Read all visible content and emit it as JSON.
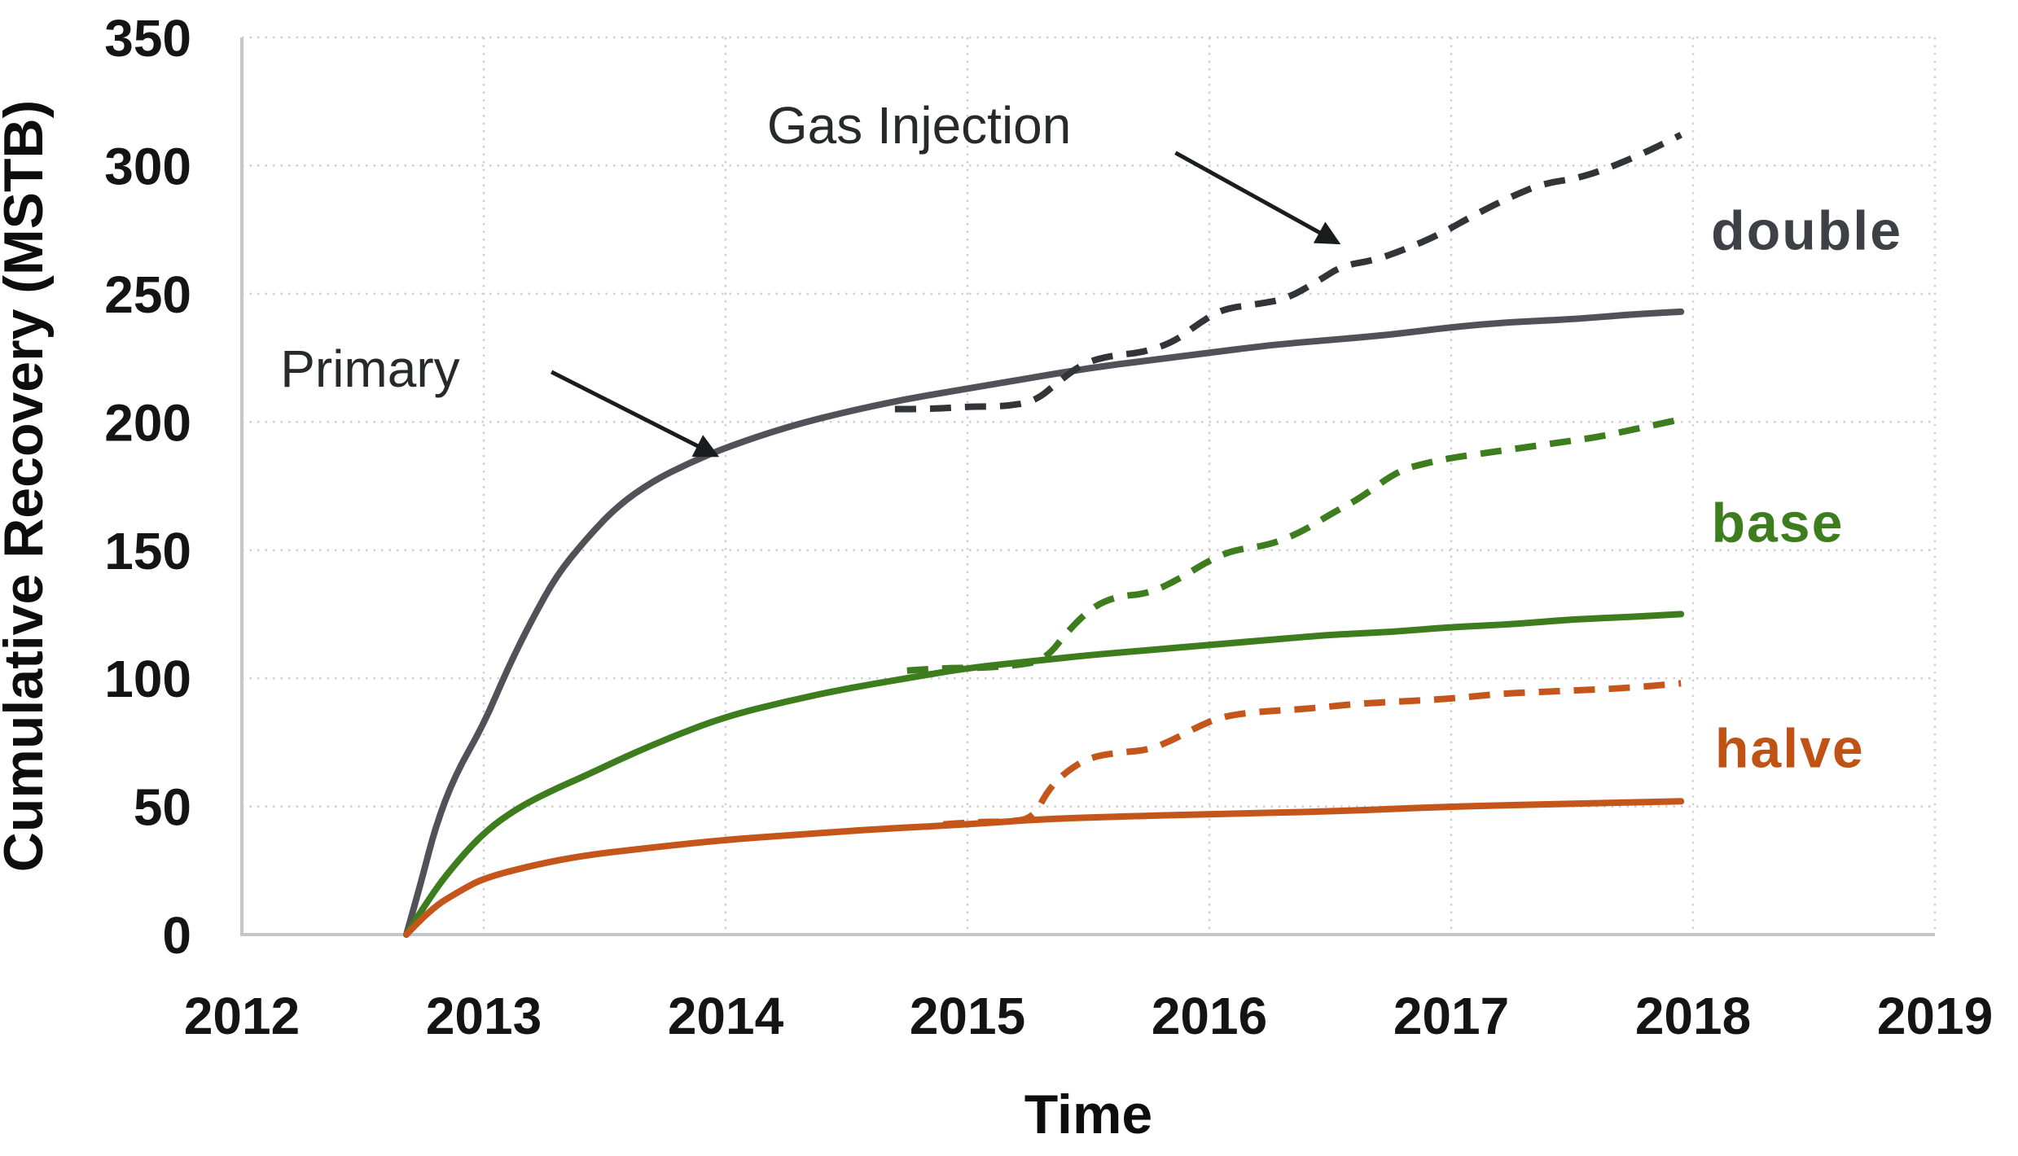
{
  "page": {
    "background": "#ffffff"
  },
  "chart_data": {
    "type": "line",
    "title": "",
    "xlabel": "Time",
    "ylabel": "Cumulative Recovery (MSTB)",
    "xlim": [
      2012,
      2019
    ],
    "ylim": [
      0,
      350
    ],
    "x_ticks": [
      "2012",
      "2013",
      "2014",
      "2015",
      "2016",
      "2017",
      "2018",
      "2019"
    ],
    "y_ticks": [
      "0",
      "50",
      "100",
      "150",
      "200",
      "250",
      "300",
      "350"
    ],
    "grid": "dotted",
    "colors": {
      "double": "#3d4045",
      "double_line_solid": "#515157",
      "double_line_dashed": "#333438",
      "base": "#3d7d1e",
      "halve": "#c4551b",
      "halve_label": "#c05214",
      "annotation": "#28292b",
      "arrow": "#1b1c1e",
      "gridline": "#ccd0d4",
      "axis": "#c3c7cb"
    },
    "series": [
      {
        "name": "primary-double",
        "scenario": "double",
        "mode": "Primary",
        "style": "solid",
        "color": "#515157",
        "points": [
          [
            2012.68,
            0
          ],
          [
            2012.74,
            20
          ],
          [
            2012.8,
            42
          ],
          [
            2012.88,
            62
          ],
          [
            2013.0,
            82
          ],
          [
            2013.1,
            104
          ],
          [
            2013.2,
            123
          ],
          [
            2013.3,
            140
          ],
          [
            2013.42,
            154
          ],
          [
            2013.55,
            167
          ],
          [
            2013.7,
            177
          ],
          [
            2013.85,
            184
          ],
          [
            2014.0,
            190
          ],
          [
            2014.25,
            198
          ],
          [
            2014.5,
            204
          ],
          [
            2014.75,
            209
          ],
          [
            2015.0,
            213
          ],
          [
            2015.25,
            217
          ],
          [
            2015.5,
            221
          ],
          [
            2015.75,
            224
          ],
          [
            2016.0,
            227
          ],
          [
            2016.25,
            230
          ],
          [
            2016.5,
            232
          ],
          [
            2016.75,
            234
          ],
          [
            2017.0,
            237
          ],
          [
            2017.25,
            239
          ],
          [
            2017.5,
            240
          ],
          [
            2017.75,
            242
          ],
          [
            2017.95,
            243
          ]
        ]
      },
      {
        "name": "gas-injection-double",
        "scenario": "double",
        "mode": "Gas Injection",
        "style": "dashed",
        "color": "#333438",
        "points": [
          [
            2014.7,
            205
          ],
          [
            2014.85,
            205
          ],
          [
            2015.0,
            206
          ],
          [
            2015.15,
            206
          ],
          [
            2015.28,
            208
          ],
          [
            2015.38,
            216
          ],
          [
            2015.48,
            223
          ],
          [
            2015.6,
            226
          ],
          [
            2015.72,
            227
          ],
          [
            2015.85,
            231
          ],
          [
            2015.95,
            238
          ],
          [
            2016.05,
            244
          ],
          [
            2016.2,
            246
          ],
          [
            2016.32,
            248
          ],
          [
            2016.45,
            255
          ],
          [
            2016.55,
            261
          ],
          [
            2016.68,
            263
          ],
          [
            2016.8,
            267
          ],
          [
            2016.95,
            273
          ],
          [
            2017.1,
            281
          ],
          [
            2017.25,
            288
          ],
          [
            2017.38,
            293
          ],
          [
            2017.52,
            295
          ],
          [
            2017.65,
            299
          ],
          [
            2017.8,
            305
          ],
          [
            2017.95,
            312
          ]
        ]
      },
      {
        "name": "primary-base",
        "scenario": "base",
        "mode": "Primary",
        "style": "solid",
        "color": "#3d7d1e",
        "points": [
          [
            2012.68,
            0
          ],
          [
            2012.76,
            12
          ],
          [
            2012.85,
            24
          ],
          [
            2013.0,
            40
          ],
          [
            2013.15,
            50
          ],
          [
            2013.3,
            57
          ],
          [
            2013.42,
            62
          ],
          [
            2013.6,
            70
          ],
          [
            2013.8,
            78
          ],
          [
            2014.0,
            85
          ],
          [
            2014.25,
            91
          ],
          [
            2014.5,
            96
          ],
          [
            2014.75,
            100
          ],
          [
            2015.0,
            104
          ],
          [
            2015.3,
            107
          ],
          [
            2015.5,
            109
          ],
          [
            2015.75,
            111
          ],
          [
            2016.0,
            113
          ],
          [
            2016.25,
            115
          ],
          [
            2016.5,
            117
          ],
          [
            2016.75,
            118
          ],
          [
            2017.0,
            120
          ],
          [
            2017.25,
            121
          ],
          [
            2017.5,
            123
          ],
          [
            2017.75,
            124
          ],
          [
            2017.95,
            125
          ]
        ]
      },
      {
        "name": "gas-injection-base",
        "scenario": "base",
        "mode": "Gas Injection",
        "style": "dashed",
        "color": "#3d7d1e",
        "points": [
          [
            2014.75,
            103
          ],
          [
            2014.9,
            104
          ],
          [
            2015.05,
            104
          ],
          [
            2015.2,
            105
          ],
          [
            2015.32,
            107
          ],
          [
            2015.42,
            119
          ],
          [
            2015.52,
            128
          ],
          [
            2015.62,
            132
          ],
          [
            2015.75,
            133
          ],
          [
            2015.88,
            139
          ],
          [
            2016.0,
            146
          ],
          [
            2016.1,
            150
          ],
          [
            2016.25,
            152
          ],
          [
            2016.38,
            157
          ],
          [
            2016.5,
            164
          ],
          [
            2016.62,
            170
          ],
          [
            2016.78,
            181
          ],
          [
            2016.9,
            184
          ],
          [
            2017.0,
            186
          ],
          [
            2017.15,
            188
          ],
          [
            2017.3,
            190
          ],
          [
            2017.45,
            192
          ],
          [
            2017.6,
            194
          ],
          [
            2017.75,
            197
          ],
          [
            2017.95,
            201
          ]
        ]
      },
      {
        "name": "primary-halve",
        "scenario": "halve",
        "mode": "Primary",
        "style": "solid",
        "color": "#c4551b",
        "points": [
          [
            2012.68,
            0
          ],
          [
            2012.78,
            10
          ],
          [
            2012.9,
            17
          ],
          [
            2013.0,
            22
          ],
          [
            2013.2,
            27
          ],
          [
            2013.42,
            31
          ],
          [
            2013.7,
            34
          ],
          [
            2014.0,
            37
          ],
          [
            2014.3,
            39
          ],
          [
            2014.6,
            41
          ],
          [
            2015.0,
            43
          ],
          [
            2015.3,
            45
          ],
          [
            2015.6,
            46
          ],
          [
            2016.0,
            47
          ],
          [
            2016.5,
            48
          ],
          [
            2017.0,
            50
          ],
          [
            2017.5,
            51
          ],
          [
            2017.95,
            52
          ]
        ]
      },
      {
        "name": "gas-injection-halve",
        "scenario": "halve",
        "mode": "Gas Injection",
        "style": "dashed",
        "color": "#c4551b",
        "points": [
          [
            2014.9,
            43
          ],
          [
            2015.05,
            44
          ],
          [
            2015.15,
            44
          ],
          [
            2015.27,
            45
          ],
          [
            2015.33,
            56
          ],
          [
            2015.4,
            63
          ],
          [
            2015.5,
            69
          ],
          [
            2015.62,
            71
          ],
          [
            2015.75,
            72
          ],
          [
            2015.85,
            76
          ],
          [
            2015.95,
            81
          ],
          [
            2016.05,
            85
          ],
          [
            2016.2,
            87
          ],
          [
            2016.4,
            88
          ],
          [
            2016.6,
            90
          ],
          [
            2016.8,
            91
          ],
          [
            2017.0,
            92
          ],
          [
            2017.2,
            94
          ],
          [
            2017.45,
            95
          ],
          [
            2017.7,
            96
          ],
          [
            2017.95,
            98
          ]
        ]
      }
    ],
    "series_labels": [
      {
        "text": "double",
        "color": "#3d4045",
        "x": 2018.47,
        "y": 275
      },
      {
        "text": "base",
        "color": "#3d7d1e",
        "x": 2018.35,
        "y": 161
      },
      {
        "text": "halve",
        "color": "#c05214",
        "x": 2018.4,
        "y": 73
      }
    ],
    "annotations": [
      {
        "text": "Primary",
        "x": 2012.53,
        "y": 221,
        "arrow": {
          "from": [
            2013.28,
            219.5
          ],
          "to": [
            2013.96,
            187
          ]
        }
      },
      {
        "text": "Gas Injection",
        "x": 2014.8,
        "y": 316,
        "arrow": {
          "from": [
            2015.86,
            305
          ],
          "to": [
            2016.53,
            270
          ]
        }
      }
    ]
  }
}
